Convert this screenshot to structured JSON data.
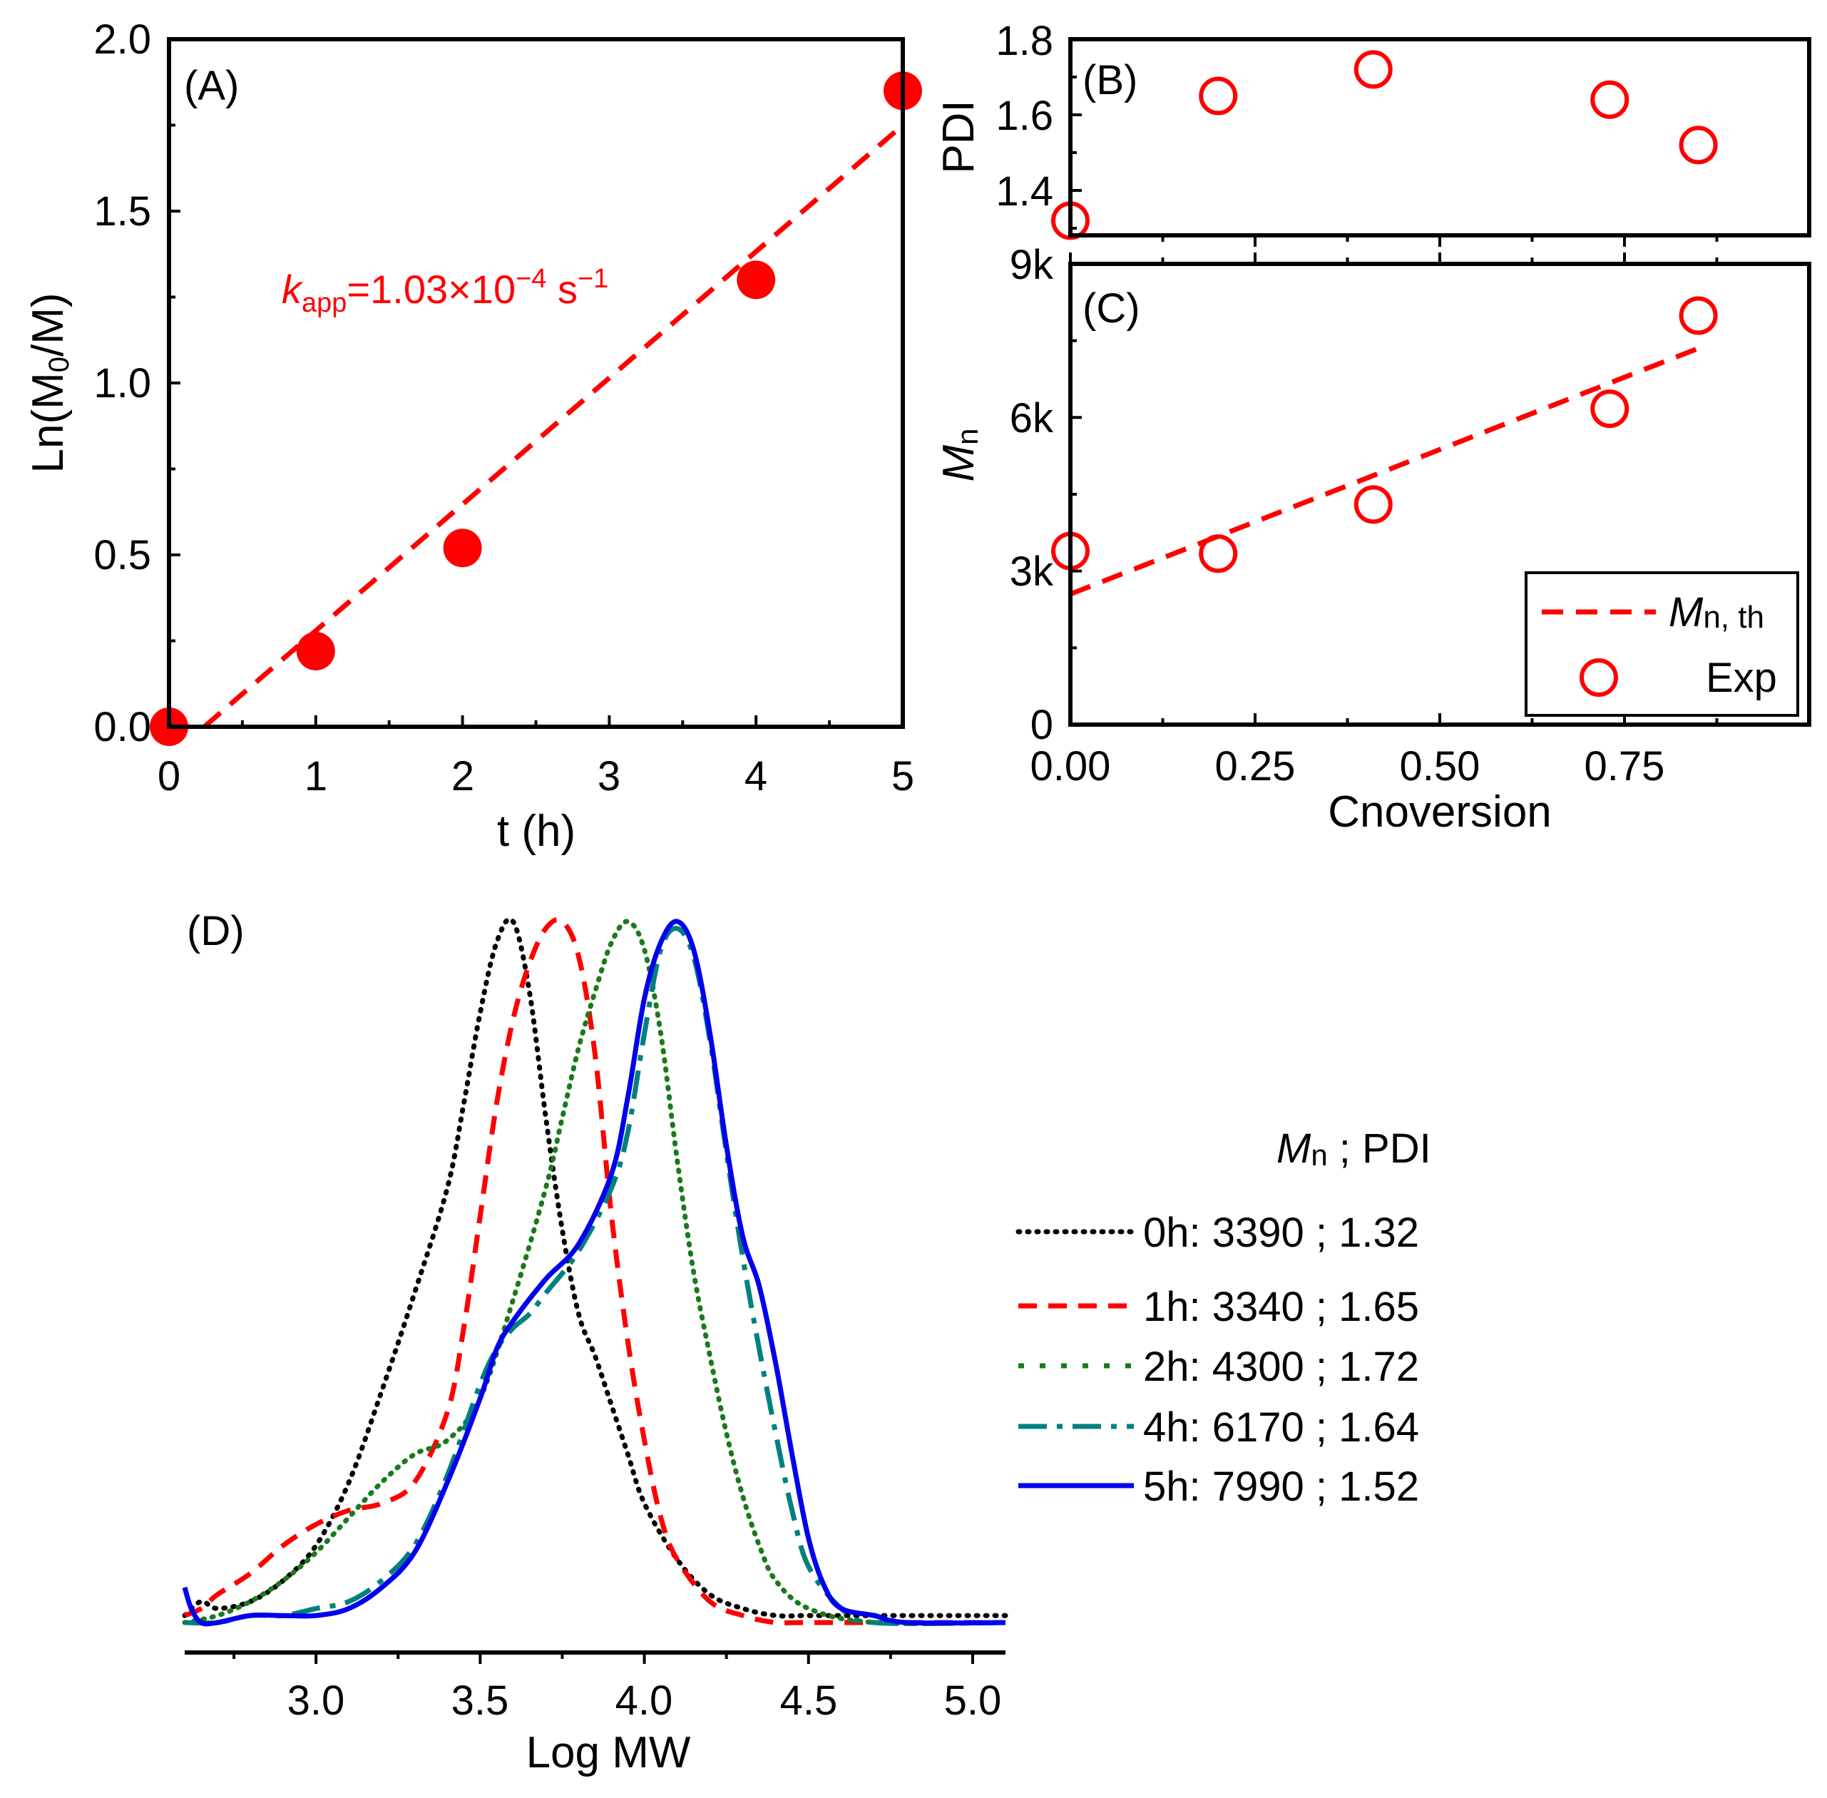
{
  "colors": {
    "red": "#ff0000",
    "black": "#000000",
    "green": "#1a7a1a",
    "teal": "#008080",
    "blue": "#0000ee"
  },
  "chart_data": [
    {
      "id": "A",
      "type": "scatter",
      "panel_label": "(A)",
      "xlabel": "t (h)",
      "ylabel": "Ln(M0/M)",
      "ylabel_parts": {
        "pre": "Ln(M",
        "sub": "0",
        "post": "/M)"
      },
      "xlim": [
        0,
        5
      ],
      "ylim": [
        0,
        2.0
      ],
      "x_ticks": [
        "0",
        "1",
        "2",
        "3",
        "4",
        "5"
      ],
      "y_ticks": [
        "0.0",
        "0.5",
        "1.0",
        "1.5",
        "2.0"
      ],
      "x": [
        0,
        1,
        2,
        4,
        5
      ],
      "y": [
        0,
        0.22,
        0.52,
        1.3,
        1.85
      ],
      "fit": {
        "x": [
          0.24,
          5
        ],
        "y": [
          0,
          1.75
        ]
      },
      "annotation": {
        "k": "k",
        "sub": "app",
        "eq": "=1.03×10",
        "exp": "−4",
        "unit": " s",
        "unit_exp": "−1"
      }
    },
    {
      "id": "B",
      "type": "scatter",
      "panel_label": "(B)",
      "ylabel": "PDI",
      "xlim": [
        0,
        1.0
      ],
      "ylim": [
        1.25,
        1.8
      ],
      "y_ticks": [
        "1.4",
        "1.6",
        "1.8"
      ],
      "x": [
        0.0,
        0.2,
        0.41,
        0.73,
        0.85
      ],
      "y": [
        1.32,
        1.65,
        1.72,
        1.64,
        1.52
      ]
    },
    {
      "id": "C",
      "type": "scatter",
      "panel_label": "(C)",
      "xlabel": "Cnoversion",
      "ylabel": "Mn",
      "ylabel_parts": {
        "main": "M",
        "sub": "n"
      },
      "xlim": [
        0,
        1.0
      ],
      "ylim": [
        0,
        9000
      ],
      "x_ticks": [
        "0.00",
        "0.25",
        "0.50",
        "0.75"
      ],
      "y_ticks": [
        "0",
        "3k",
        "6k",
        "9k"
      ],
      "x": [
        0.0,
        0.2,
        0.41,
        0.73,
        0.85
      ],
      "y": [
        3390,
        3340,
        4300,
        6170,
        7990
      ],
      "fit": {
        "x": [
          0,
          0.85
        ],
        "y": [
          2550,
          7350
        ]
      },
      "legend": {
        "fit_label": "Mn, th",
        "fit_main": "M",
        "fit_sub": "n, th",
        "exp_label": "Exp"
      }
    },
    {
      "id": "D",
      "type": "line",
      "panel_label": "(D)",
      "xlabel": "Log MW",
      "xlim": [
        2.6,
        5.1
      ],
      "x_ticks": [
        "3.0",
        "3.5",
        "4.0",
        "4.5",
        "5.0"
      ],
      "legend_title": {
        "main": "M",
        "sub": "n",
        "rest": " ; PDI"
      },
      "series": [
        {
          "name": "0h: 3390 ; 1.32",
          "style": "dotted",
          "color": "#000000",
          "x": [
            2.6,
            2.65,
            2.7,
            2.8,
            2.9,
            3.0,
            3.1,
            3.2,
            3.3,
            3.4,
            3.45,
            3.5,
            3.55,
            3.6,
            3.65,
            3.7,
            3.75,
            3.8,
            3.85,
            3.9,
            3.95,
            4.0,
            4.1,
            4.2,
            4.3,
            4.4,
            4.5,
            4.7,
            5.1
          ],
          "y": [
            0.01,
            0.03,
            0.02,
            0.03,
            0.06,
            0.11,
            0.2,
            0.33,
            0.47,
            0.62,
            0.74,
            0.87,
            0.97,
            1.0,
            0.9,
            0.72,
            0.56,
            0.44,
            0.38,
            0.31,
            0.24,
            0.17,
            0.09,
            0.04,
            0.02,
            0.01,
            0.01,
            0.01,
            0.01
          ]
        },
        {
          "name": "1h: 3340 ; 1.65",
          "style": "dashed",
          "color": "#ff0000",
          "x": [
            2.6,
            2.65,
            2.7,
            2.8,
            2.9,
            3.0,
            3.1,
            3.2,
            3.3,
            3.4,
            3.45,
            3.5,
            3.55,
            3.6,
            3.65,
            3.7,
            3.75,
            3.8,
            3.85,
            3.9,
            3.95,
            4.0,
            4.05,
            4.1,
            4.2,
            4.3,
            4.4,
            4.5,
            5.1
          ],
          "y": [
            0.01,
            0.02,
            0.04,
            0.07,
            0.11,
            0.14,
            0.16,
            0.17,
            0.2,
            0.3,
            0.42,
            0.58,
            0.74,
            0.86,
            0.94,
            0.99,
            1.0,
            0.95,
            0.81,
            0.58,
            0.4,
            0.26,
            0.15,
            0.09,
            0.03,
            0.01,
            0.0,
            0.0,
            0.0
          ]
        },
        {
          "name": "2h: 4300 ; 1.72",
          "style": "dotted",
          "color": "#1a7a1a",
          "x": [
            2.6,
            2.7,
            2.8,
            2.9,
            3.0,
            3.1,
            3.2,
            3.3,
            3.4,
            3.5,
            3.6,
            3.7,
            3.75,
            3.8,
            3.85,
            3.9,
            3.95,
            4.0,
            4.05,
            4.1,
            4.15,
            4.2,
            4.25,
            4.3,
            4.35,
            4.4,
            4.5,
            4.7,
            5.1
          ],
          "y": [
            0.0,
            0.01,
            0.03,
            0.06,
            0.1,
            0.15,
            0.2,
            0.24,
            0.26,
            0.32,
            0.46,
            0.62,
            0.72,
            0.82,
            0.9,
            0.97,
            1.0,
            0.96,
            0.84,
            0.66,
            0.5,
            0.38,
            0.27,
            0.18,
            0.11,
            0.06,
            0.02,
            0.0,
            0.0
          ]
        },
        {
          "name": "4h: 6170 ; 1.64",
          "style": "dashdot",
          "color": "#008080",
          "x": [
            2.6,
            2.7,
            2.8,
            2.9,
            3.0,
            3.1,
            3.2,
            3.3,
            3.4,
            3.5,
            3.55,
            3.6,
            3.65,
            3.7,
            3.8,
            3.9,
            3.95,
            4.0,
            4.05,
            4.1,
            4.15,
            4.2,
            4.25,
            4.3,
            4.35,
            4.4,
            4.45,
            4.5,
            4.6,
            4.7,
            5.1
          ],
          "y": [
            0.0,
            0.0,
            0.01,
            0.01,
            0.02,
            0.03,
            0.06,
            0.11,
            0.21,
            0.34,
            0.39,
            0.42,
            0.44,
            0.47,
            0.53,
            0.62,
            0.7,
            0.84,
            0.96,
            0.99,
            0.95,
            0.83,
            0.67,
            0.52,
            0.39,
            0.27,
            0.16,
            0.08,
            0.02,
            0.0,
            0.0
          ]
        },
        {
          "name": "5h: 7990 ; 1.52",
          "style": "solid",
          "color": "#0000ee",
          "x": [
            2.6,
            2.62,
            2.65,
            2.7,
            2.8,
            2.9,
            3.0,
            3.1,
            3.2,
            3.3,
            3.4,
            3.5,
            3.55,
            3.6,
            3.7,
            3.8,
            3.9,
            3.95,
            4.0,
            4.05,
            4.1,
            4.15,
            4.2,
            4.25,
            4.3,
            4.35,
            4.4,
            4.45,
            4.5,
            4.55,
            4.6,
            4.7,
            4.8,
            5.1
          ],
          "y": [
            0.05,
            0.02,
            0.0,
            0.0,
            0.01,
            0.01,
            0.01,
            0.02,
            0.05,
            0.1,
            0.2,
            0.32,
            0.39,
            0.43,
            0.49,
            0.54,
            0.64,
            0.75,
            0.89,
            0.97,
            1.0,
            0.96,
            0.84,
            0.68,
            0.55,
            0.48,
            0.37,
            0.24,
            0.12,
            0.05,
            0.02,
            0.01,
            0.0,
            0.0
          ]
        }
      ]
    }
  ]
}
